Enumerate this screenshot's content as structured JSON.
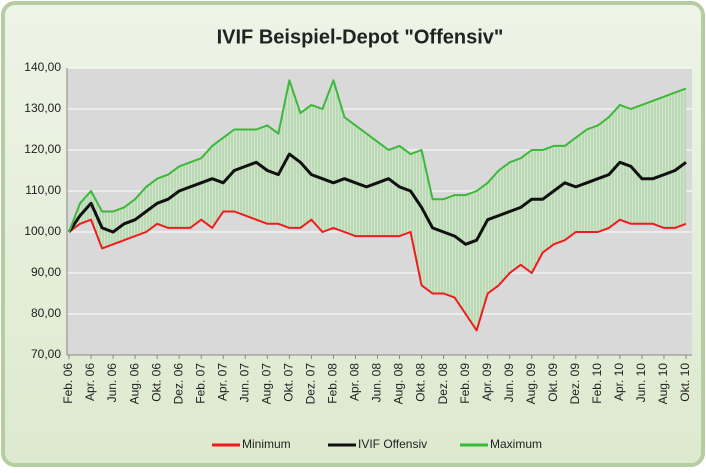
{
  "chart_data": {
    "type": "line",
    "title": "IVIF Beispiel-Depot \"Offensiv\"",
    "categories": [
      "Feb. 06",
      null,
      "Apr. 06",
      null,
      "Jun. 06",
      null,
      "Aug. 06",
      null,
      "Okt. 06",
      null,
      "Dez. 06",
      null,
      "Feb. 07",
      null,
      "Apr. 07",
      null,
      "Jun. 07",
      null,
      "Aug. 07",
      null,
      "Okt. 07",
      null,
      "Dez. 07",
      null,
      "Feb. 08",
      null,
      "Apr. 08",
      null,
      "Jun. 08",
      null,
      "Aug. 08",
      null,
      "Okt. 08",
      null,
      "Dez. 08",
      null,
      "Feb. 09",
      null,
      "Apr. 09",
      null,
      "Jun. 09",
      null,
      "Aug. 09",
      null,
      "Okt. 09",
      null,
      "Dez. 09",
      null,
      "Feb. 10",
      null,
      "Apr. 10",
      null,
      "Jun. 10",
      null,
      "Aug. 10",
      null,
      "Okt. 10"
    ],
    "series": [
      {
        "name": "Minimum",
        "color": "#ee1c1c",
        "values": [
          100,
          102,
          103,
          96,
          97,
          98,
          99,
          100,
          102,
          101,
          101,
          101,
          103,
          101,
          105,
          105,
          104,
          103,
          102,
          102,
          101,
          101,
          103,
          100,
          101,
          100,
          99,
          99,
          99,
          99,
          99,
          100,
          87,
          85,
          85,
          84,
          80,
          76,
          85,
          87,
          90,
          92,
          90,
          95,
          97,
          98,
          100,
          100,
          100,
          101,
          103,
          102,
          102,
          102,
          101,
          101,
          102
        ]
      },
      {
        "name": "IVIF Offensiv",
        "color": "#111111",
        "values": [
          100,
          104,
          107,
          101,
          100,
          102,
          103,
          105,
          107,
          108,
          110,
          111,
          112,
          113,
          112,
          115,
          116,
          117,
          115,
          114,
          119,
          117,
          114,
          113,
          112,
          113,
          112,
          111,
          112,
          113,
          111,
          110,
          106,
          101,
          100,
          99,
          97,
          98,
          103,
          104,
          105,
          106,
          108,
          108,
          110,
          112,
          111,
          112,
          113,
          114,
          117,
          116,
          113,
          113,
          114,
          115,
          117
        ]
      },
      {
        "name": "Maximum",
        "color": "#3cb83c",
        "values": [
          100,
          107,
          110,
          105,
          105,
          106,
          108,
          111,
          113,
          114,
          116,
          117,
          118,
          121,
          123,
          125,
          125,
          125,
          126,
          124,
          137,
          129,
          131,
          130,
          137,
          128,
          126,
          124,
          122,
          120,
          121,
          119,
          120,
          108,
          108,
          109,
          109,
          110,
          112,
          115,
          117,
          118,
          120,
          120,
          121,
          121,
          123,
          125,
          126,
          128,
          131,
          130,
          131,
          132,
          133,
          134,
          135
        ]
      }
    ],
    "ylim": [
      70,
      140
    ],
    "yticks": [
      {
        "value": 70,
        "label": "70,00"
      },
      {
        "value": 80,
        "label": "80,00"
      },
      {
        "value": 90,
        "label": "90,00"
      },
      {
        "value": 100,
        "label": "100,00"
      },
      {
        "value": 110,
        "label": "110,00"
      },
      {
        "value": 120,
        "label": "120,00"
      },
      {
        "value": 130,
        "label": "130,00"
      },
      {
        "value": 140,
        "label": "140,00"
      }
    ],
    "grid": true,
    "legend": "bottom"
  }
}
